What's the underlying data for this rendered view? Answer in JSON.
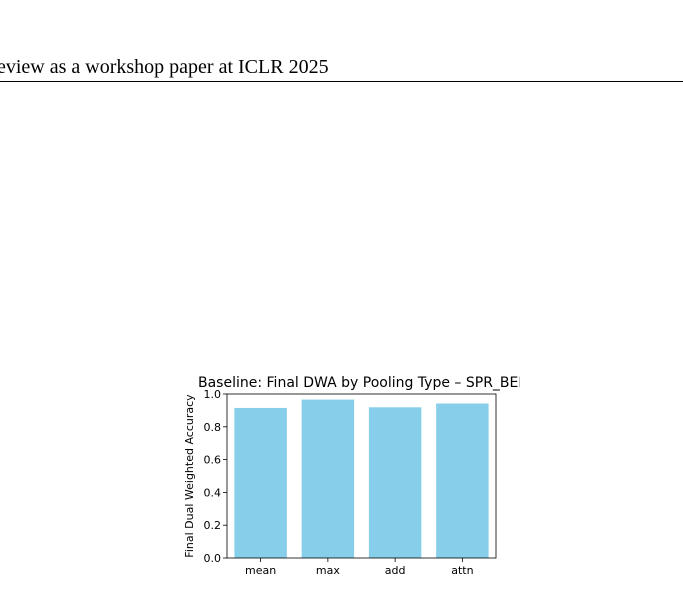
{
  "header": {
    "running_title": "eview as a workshop paper at ICLR 2025"
  },
  "chart_data": {
    "type": "bar",
    "title": "Baseline: Final DWA by Pooling Type – SPR_BENC",
    "xlabel": "",
    "ylabel": "Final Dual Weighted Accuracy",
    "categories": [
      "mean",
      "max",
      "add",
      "attn"
    ],
    "values": [
      0.915,
      0.966,
      0.919,
      0.942
    ],
    "ylim": [
      0,
      1.0
    ],
    "yticks": [
      0.0,
      0.2,
      0.4,
      0.6,
      0.8,
      1.0
    ],
    "ytick_labels": [
      "0.0",
      "0.2",
      "0.4",
      "0.6",
      "0.8",
      "1.0"
    ],
    "bar_color": "#87ceeb",
    "grid": false,
    "legend": "none"
  }
}
